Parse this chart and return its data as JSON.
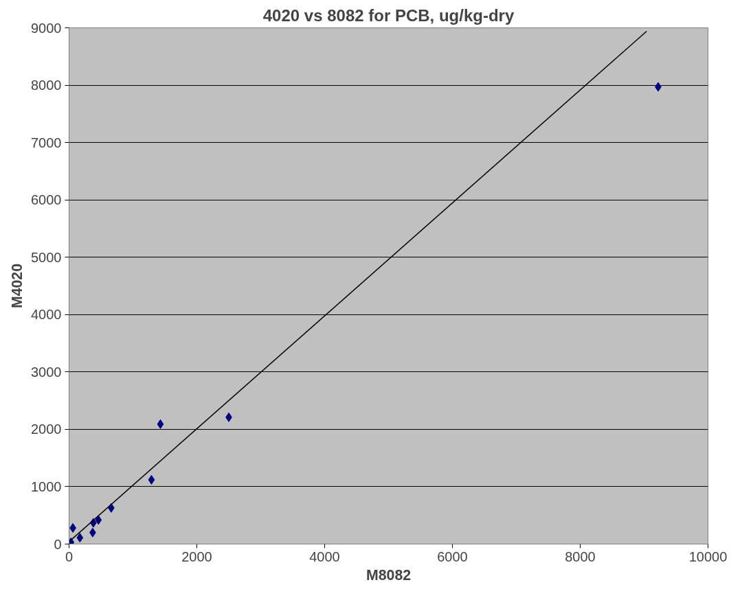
{
  "chart_data": {
    "type": "scatter",
    "title": "4020 vs 8082 for PCB, ug/kg-dry",
    "xlabel": "M8082",
    "ylabel": "M4020",
    "xlim": [
      0,
      10000
    ],
    "xticks": [
      0,
      2000,
      4000,
      6000,
      8000,
      10000
    ],
    "ylim": [
      0,
      9000
    ],
    "yticks": [
      0,
      1000,
      2000,
      3000,
      4000,
      5000,
      6000,
      7000,
      8000,
      9000
    ],
    "grid": "y",
    "marker": "diamond",
    "series": [
      {
        "color": "#000080",
        "x": [
          9220,
          2500,
          1430,
          1290,
          660,
          460,
          380,
          370,
          170,
          60,
          30
        ],
        "values": [
          7970,
          2210,
          2090,
          1120,
          630,
          420,
          370,
          200,
          110,
          280,
          30
        ]
      },
      {
        "type": "line",
        "color": "#000000",
        "line_style": "solid",
        "marker": "none",
        "x": [
          30,
          9040
        ],
        "values": [
          70,
          8940
        ]
      }
    ]
  }
}
